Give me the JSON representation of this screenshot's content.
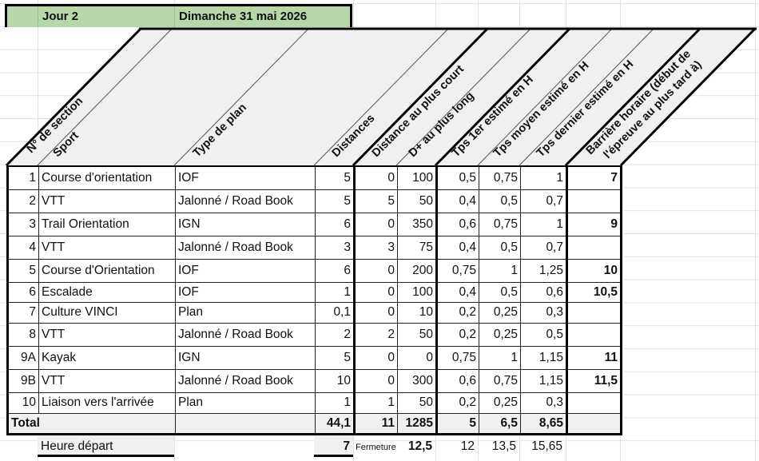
{
  "title_bar": {
    "day_label": "Jour 2",
    "date_label": "Dimanche 31 mai 2026"
  },
  "headers": {
    "section": "N° de section",
    "sport": "Sport",
    "plan_type": "Type de plan",
    "distances": "Distances",
    "dist_short": "Distance au plus court",
    "dplus_long": "D+ au plus long",
    "t_first": "Tps 1er estimé en H",
    "t_avg": "Tps moyen estimé en H",
    "t_last": "Tps dernier estimé en H",
    "barrier_line1": "Barrière horaire (début de",
    "barrier_line2": "l'épreuve au plus tard à)"
  },
  "rows": [
    {
      "section": "1",
      "sport": "Course d'orientation",
      "plan": "IOF",
      "distance": "5",
      "dist_short": "0",
      "dplus": "100",
      "t_first": "0,5",
      "t_avg": "0,75",
      "t_last": "1",
      "barrier": "7"
    },
    {
      "section": "2",
      "sport": "VTT",
      "plan": "Jalonné / Road Book",
      "distance": "5",
      "dist_short": "5",
      "dplus": "50",
      "t_first": "0,4",
      "t_avg": "0,5",
      "t_last": "0,7",
      "barrier": ""
    },
    {
      "section": "3",
      "sport": "Trail Orientation",
      "plan": "IGN",
      "distance": "6",
      "dist_short": "0",
      "dplus": "350",
      "t_first": "0,6",
      "t_avg": "0,75",
      "t_last": "1",
      "barrier": "9"
    },
    {
      "section": "4",
      "sport": "VTT",
      "plan": "Jalonné / Road Book",
      "distance": "3",
      "dist_short": "3",
      "dplus": "75",
      "t_first": "0,4",
      "t_avg": "0,5",
      "t_last": "0,7",
      "barrier": ""
    },
    {
      "section": "5",
      "sport": "Course d'Orientation",
      "plan": "IOF",
      "distance": "6",
      "dist_short": "0",
      "dplus": "200",
      "t_first": "0,75",
      "t_avg": "1",
      "t_last": "1,25",
      "barrier": "10"
    },
    {
      "section": "6",
      "sport": "Escalade",
      "plan": "IOF",
      "distance": "1",
      "dist_short": "0",
      "dplus": "100",
      "t_first": "0,4",
      "t_avg": "0,5",
      "t_last": "0,6",
      "barrier": "10,5"
    },
    {
      "section": "7",
      "sport": "Culture VINCI",
      "plan": "Plan",
      "distance": "0,1",
      "dist_short": "0",
      "dplus": "10",
      "t_first": "0,2",
      "t_avg": "0,25",
      "t_last": "0,3",
      "barrier": ""
    },
    {
      "section": "8",
      "sport": "VTT",
      "plan": "Jalonné / Road Book",
      "distance": "2",
      "dist_short": "2",
      "dplus": "50",
      "t_first": "0,2",
      "t_avg": "0,25",
      "t_last": "0,5",
      "barrier": ""
    },
    {
      "section": "9A",
      "sport": "Kayak",
      "plan": "IGN",
      "distance": "5",
      "dist_short": "0",
      "dplus": "0",
      "t_first": "0,75",
      "t_avg": "1",
      "t_last": "1,15",
      "barrier": "11"
    },
    {
      "section": "9B",
      "sport": "VTT",
      "plan": "Jalonné / Road Book",
      "distance": "10",
      "dist_short": "0",
      "dplus": "300",
      "t_first": "0,6",
      "t_avg": "0,75",
      "t_last": "1,15",
      "barrier": "11,5"
    },
    {
      "section": "10",
      "sport": "Liaison vers l'arrivée",
      "plan": "Plan",
      "distance": "1",
      "dist_short": "1",
      "dplus": "50",
      "t_first": "0,2",
      "t_avg": "0,25",
      "t_last": "0,3",
      "barrier": ""
    }
  ],
  "total": {
    "label": "Total",
    "distance": "44,1",
    "dist_short": "11",
    "dplus": "1285",
    "t_first": "5",
    "t_avg": "6,5",
    "t_last": "8,65"
  },
  "footer": {
    "start_label": "Heure départ",
    "start_value": "7",
    "closing_label": "Fermeture",
    "closing_value": "12,5",
    "t_first": "12",
    "t_avg": "13,5",
    "t_last": "15,65"
  },
  "colors": {
    "title_bg": "#b7d7a8",
    "header_bg": "#f0f0f0",
    "total_bg": "#f0f0f0",
    "border": "#000000"
  }
}
